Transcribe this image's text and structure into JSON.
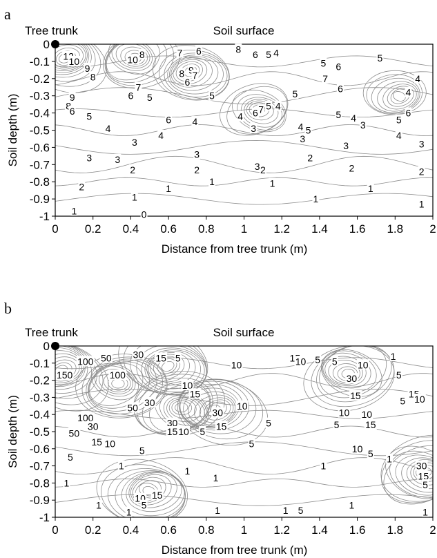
{
  "chart_data": [
    {
      "panel": "a",
      "type": "contour",
      "header_left": "Tree trunk",
      "header_center": "Soil surface",
      "xlabel": "Distance from tree trunk (m)",
      "ylabel": "Soil depth (m)",
      "xlim": [
        0,
        2
      ],
      "ylim": [
        -1,
        0
      ],
      "xticks": [
        "0",
        "0.2",
        "0.4",
        "0.6",
        "0.8",
        "1",
        "1.2",
        "1.4",
        "1.6",
        "1.8",
        "2"
      ],
      "yticks": [
        "0",
        "-0.1",
        "-0.2",
        "-0.3",
        "-0.4",
        "-0.5",
        "-0.6",
        "-0.7",
        "-0.8",
        "-0.9",
        "-1"
      ],
      "trunk_marker": {
        "x": 0,
        "y": 0
      },
      "peaks": [
        {
          "x": 0.05,
          "y": -0.08,
          "value": 12
        },
        {
          "x": 0.42,
          "y": -0.08,
          "value": 10
        },
        {
          "x": 0.72,
          "y": -0.16,
          "value": 9
        },
        {
          "x": 1.08,
          "y": -0.38,
          "value": 7
        },
        {
          "x": 1.82,
          "y": -0.3,
          "value": 6
        }
      ],
      "contour_labels": [
        {
          "text": "12",
          "x": 0.07,
          "y": -0.07
        },
        {
          "text": "10",
          "x": 0.1,
          "y": -0.1
        },
        {
          "text": "9",
          "x": 0.17,
          "y": -0.14
        },
        {
          "text": "8",
          "x": 0.2,
          "y": -0.19
        },
        {
          "text": "9",
          "x": 0.09,
          "y": -0.31
        },
        {
          "text": "8",
          "x": 0.07,
          "y": -0.36
        },
        {
          "text": "6",
          "x": 0.09,
          "y": -0.39
        },
        {
          "text": "5",
          "x": 0.18,
          "y": -0.42
        },
        {
          "text": "4",
          "x": 0.28,
          "y": -0.49
        },
        {
          "text": "3",
          "x": 0.18,
          "y": -0.66
        },
        {
          "text": "2",
          "x": 0.14,
          "y": -0.83
        },
        {
          "text": "1",
          "x": 0.1,
          "y": -0.97
        },
        {
          "text": "10",
          "x": 0.41,
          "y": -0.09
        },
        {
          "text": "8",
          "x": 0.46,
          "y": -0.06
        },
        {
          "text": "7",
          "x": 0.44,
          "y": -0.25
        },
        {
          "text": "6",
          "x": 0.4,
          "y": -0.3
        },
        {
          "text": "5",
          "x": 0.5,
          "y": -0.31
        },
        {
          "text": "3",
          "x": 0.42,
          "y": -0.57
        },
        {
          "text": "3",
          "x": 0.33,
          "y": -0.67
        },
        {
          "text": "2",
          "x": 0.41,
          "y": -0.73
        },
        {
          "text": "1",
          "x": 0.42,
          "y": -0.89
        },
        {
          "text": "0",
          "x": 0.47,
          "y": -0.99
        },
        {
          "text": "7",
          "x": 0.66,
          "y": -0.05
        },
        {
          "text": "6",
          "x": 0.76,
          "y": -0.04
        },
        {
          "text": "8",
          "x": 0.67,
          "y": -0.17
        },
        {
          "text": "9",
          "x": 0.72,
          "y": -0.15
        },
        {
          "text": "7",
          "x": 0.74,
          "y": -0.18
        },
        {
          "text": "6",
          "x": 0.7,
          "y": -0.22
        },
        {
          "text": "5",
          "x": 0.83,
          "y": -0.3
        },
        {
          "text": "6",
          "x": 0.6,
          "y": -0.44
        },
        {
          "text": "4",
          "x": 0.56,
          "y": -0.53
        },
        {
          "text": "4",
          "x": 0.74,
          "y": -0.45
        },
        {
          "text": "3",
          "x": 0.75,
          "y": -0.64
        },
        {
          "text": "2",
          "x": 0.75,
          "y": -0.73
        },
        {
          "text": "1",
          "x": 0.6,
          "y": -0.84
        },
        {
          "text": "1",
          "x": 0.83,
          "y": -0.8
        },
        {
          "text": "8",
          "x": 0.97,
          "y": -0.03
        },
        {
          "text": "6",
          "x": 1.06,
          "y": -0.06
        },
        {
          "text": "5",
          "x": 1.13,
          "y": -0.06
        },
        {
          "text": "4",
          "x": 1.17,
          "y": -0.05
        },
        {
          "text": "5",
          "x": 1.13,
          "y": -0.36
        },
        {
          "text": "4",
          "x": 1.18,
          "y": -0.36
        },
        {
          "text": "7",
          "x": 1.09,
          "y": -0.38
        },
        {
          "text": "6",
          "x": 1.06,
          "y": -0.4
        },
        {
          "text": "4",
          "x": 0.98,
          "y": -0.42
        },
        {
          "text": "3",
          "x": 1.05,
          "y": -0.49
        },
        {
          "text": "3",
          "x": 1.07,
          "y": -0.71
        },
        {
          "text": "2",
          "x": 1.1,
          "y": -0.73
        },
        {
          "text": "1",
          "x": 1.15,
          "y": -0.81
        },
        {
          "text": "5",
          "x": 1.27,
          "y": -0.29
        },
        {
          "text": "4",
          "x": 1.3,
          "y": -0.48
        },
        {
          "text": "5",
          "x": 1.34,
          "y": -0.5
        },
        {
          "text": "3",
          "x": 1.31,
          "y": -0.55
        },
        {
          "text": "2",
          "x": 1.35,
          "y": -0.66
        },
        {
          "text": "1",
          "x": 1.38,
          "y": -0.9
        },
        {
          "text": "5",
          "x": 1.42,
          "y": -0.11
        },
        {
          "text": "6",
          "x": 1.5,
          "y": -0.13
        },
        {
          "text": "7",
          "x": 1.43,
          "y": -0.2
        },
        {
          "text": "6",
          "x": 1.51,
          "y": -0.26
        },
        {
          "text": "5",
          "x": 1.5,
          "y": -0.41
        },
        {
          "text": "4",
          "x": 1.58,
          "y": -0.43
        },
        {
          "text": "3",
          "x": 1.63,
          "y": -0.47
        },
        {
          "text": "3",
          "x": 1.54,
          "y": -0.59
        },
        {
          "text": "2",
          "x": 1.57,
          "y": -0.72
        },
        {
          "text": "1",
          "x": 1.67,
          "y": -0.84
        },
        {
          "text": "5",
          "x": 1.72,
          "y": -0.08
        },
        {
          "text": "4",
          "x": 1.92,
          "y": -0.2
        },
        {
          "text": "4",
          "x": 1.87,
          "y": -0.28
        },
        {
          "text": "6",
          "x": 1.87,
          "y": -0.4
        },
        {
          "text": "5",
          "x": 1.82,
          "y": -0.44
        },
        {
          "text": "4",
          "x": 1.82,
          "y": -0.53
        },
        {
          "text": "3",
          "x": 1.94,
          "y": -0.58
        },
        {
          "text": "2",
          "x": 1.94,
          "y": -0.74
        },
        {
          "text": "1",
          "x": 1.94,
          "y": -0.93
        }
      ]
    },
    {
      "panel": "b",
      "type": "contour",
      "header_left": "Tree trunk",
      "header_center": "Soil surface",
      "xlabel": "Distance from tree trunk (m)",
      "ylabel": "Soil depth (m)",
      "xlim": [
        0,
        2
      ],
      "ylim": [
        -1,
        0
      ],
      "xticks": [
        "0",
        "0.2",
        "0.4",
        "0.6",
        "0.8",
        "1",
        "1.2",
        "1.4",
        "1.6",
        "1.8",
        "2"
      ],
      "yticks": [
        "0",
        "-0.1",
        "-0.2",
        "-0.3",
        "-0.4",
        "-0.5",
        "-0.6",
        "-0.7",
        "-0.8",
        "-0.9",
        "-1"
      ],
      "trunk_marker": {
        "x": 0,
        "y": 0
      },
      "peaks": [
        {
          "x": 0.03,
          "y": -0.14,
          "value": 150
        },
        {
          "x": 0.33,
          "y": -0.22,
          "value": 100
        },
        {
          "x": 0.6,
          "y": -0.12,
          "value": 30
        },
        {
          "x": 0.67,
          "y": -0.36,
          "value": 30
        },
        {
          "x": 0.85,
          "y": -0.37,
          "value": 30
        },
        {
          "x": 1.55,
          "y": -0.16,
          "value": 30
        },
        {
          "x": 0.5,
          "y": -0.85,
          "value": 15
        },
        {
          "x": 1.96,
          "y": -0.74,
          "value": 30
        }
      ],
      "contour_labels": [
        {
          "text": "150",
          "x": 0.05,
          "y": -0.17
        },
        {
          "text": "100",
          "x": 0.16,
          "y": -0.09
        },
        {
          "text": "50",
          "x": 0.27,
          "y": -0.07
        },
        {
          "text": "100",
          "x": 0.33,
          "y": -0.17
        },
        {
          "text": "30",
          "x": 0.44,
          "y": -0.05
        },
        {
          "text": "15",
          "x": 0.56,
          "y": -0.07
        },
        {
          "text": "5",
          "x": 0.65,
          "y": -0.07
        },
        {
          "text": "50",
          "x": 0.41,
          "y": -0.36
        },
        {
          "text": "30",
          "x": 0.5,
          "y": -0.33
        },
        {
          "text": "100",
          "x": 0.16,
          "y": -0.42
        },
        {
          "text": "50",
          "x": 0.1,
          "y": -0.51
        },
        {
          "text": "30",
          "x": 0.2,
          "y": -0.47
        },
        {
          "text": "15",
          "x": 0.22,
          "y": -0.56
        },
        {
          "text": "10",
          "x": 0.29,
          "y": -0.57
        },
        {
          "text": "5",
          "x": 0.08,
          "y": -0.65
        },
        {
          "text": "5",
          "x": 0.46,
          "y": -0.61
        },
        {
          "text": "10",
          "x": 0.7,
          "y": -0.23
        },
        {
          "text": "15",
          "x": 0.74,
          "y": -0.28
        },
        {
          "text": "30",
          "x": 0.62,
          "y": -0.45
        },
        {
          "text": "15",
          "x": 0.62,
          "y": -0.5
        },
        {
          "text": "10",
          "x": 0.68,
          "y": -0.5
        },
        {
          "text": "5",
          "x": 0.78,
          "y": -0.5
        },
        {
          "text": "30",
          "x": 0.86,
          "y": -0.39
        },
        {
          "text": "15",
          "x": 0.88,
          "y": -0.47
        },
        {
          "text": "10",
          "x": 0.99,
          "y": -0.35
        },
        {
          "text": "10",
          "x": 0.96,
          "y": -0.11
        },
        {
          "text": "5",
          "x": 1.04,
          "y": -0.57
        },
        {
          "text": "1",
          "x": 0.7,
          "y": -0.73
        },
        {
          "text": "1",
          "x": 0.35,
          "y": -0.7
        },
        {
          "text": "1",
          "x": 0.06,
          "y": -0.8
        },
        {
          "text": "1",
          "x": 0.23,
          "y": -0.93
        },
        {
          "text": "15",
          "x": 0.54,
          "y": -0.87
        },
        {
          "text": "10",
          "x": 0.45,
          "y": -0.89
        },
        {
          "text": "5",
          "x": 0.47,
          "y": -0.93
        },
        {
          "text": "1",
          "x": 0.39,
          "y": -0.97
        },
        {
          "text": "1",
          "x": 0.85,
          "y": -0.77
        },
        {
          "text": "1",
          "x": 0.86,
          "y": -0.96
        },
        {
          "text": "5",
          "x": 1.13,
          "y": -0.45
        },
        {
          "text": "15",
          "x": 1.27,
          "y": -0.07
        },
        {
          "text": "10",
          "x": 1.3,
          "y": -0.09
        },
        {
          "text": "5",
          "x": 1.39,
          "y": -0.08
        },
        {
          "text": "5",
          "x": 1.48,
          "y": -0.09
        },
        {
          "text": "1",
          "x": 1.42,
          "y": -0.7
        },
        {
          "text": "1",
          "x": 1.22,
          "y": -0.96
        },
        {
          "text": "5",
          "x": 1.3,
          "y": -0.96
        },
        {
          "text": "30",
          "x": 1.57,
          "y": -0.19
        },
        {
          "text": "10",
          "x": 1.63,
          "y": -0.11
        },
        {
          "text": "15",
          "x": 1.59,
          "y": -0.29
        },
        {
          "text": "10",
          "x": 1.53,
          "y": -0.39
        },
        {
          "text": "5",
          "x": 1.49,
          "y": -0.46
        },
        {
          "text": "10",
          "x": 1.65,
          "y": -0.4
        },
        {
          "text": "15",
          "x": 1.67,
          "y": -0.46
        },
        {
          "text": "10",
          "x": 1.6,
          "y": -0.6
        },
        {
          "text": "5",
          "x": 1.67,
          "y": -0.63
        },
        {
          "text": "1",
          "x": 1.77,
          "y": -0.66
        },
        {
          "text": "1",
          "x": 1.57,
          "y": -0.93
        },
        {
          "text": "1",
          "x": 1.79,
          "y": -0.06
        },
        {
          "text": "5",
          "x": 1.82,
          "y": -0.17
        },
        {
          "text": "15",
          "x": 1.9,
          "y": -0.28
        },
        {
          "text": "10",
          "x": 1.93,
          "y": -0.31
        },
        {
          "text": "5",
          "x": 1.84,
          "y": -0.32
        },
        {
          "text": "30",
          "x": 1.94,
          "y": -0.7
        },
        {
          "text": "15",
          "x": 1.95,
          "y": -0.76
        },
        {
          "text": "5",
          "x": 1.96,
          "y": -0.81
        },
        {
          "text": "1",
          "x": 1.96,
          "y": -0.97
        }
      ]
    }
  ]
}
